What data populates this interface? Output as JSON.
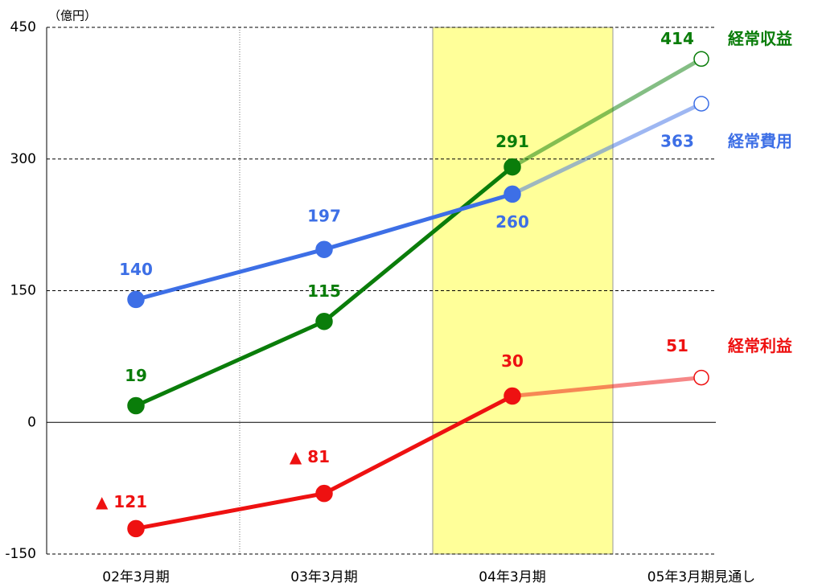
{
  "chart_data": {
    "type": "line",
    "y_axis_label": "（億円）",
    "categories": [
      "02年3月期",
      "03年3月期",
      "04年3月期",
      "05年3月期見通し"
    ],
    "series": [
      {
        "name": "経常収益",
        "color": "#0a7d0a",
        "values": [
          19,
          115,
          291,
          414
        ]
      },
      {
        "name": "経常費用",
        "color": "#3d6fe6",
        "values": [
          140,
          197,
          260,
          363
        ]
      },
      {
        "name": "経常利益",
        "color": "#ee1111",
        "values": [
          -121,
          -81,
          30,
          51
        ],
        "value_labels": [
          "▲ 121",
          "▲ 81",
          "30",
          "51"
        ]
      }
    ],
    "ylim": [
      -150,
      450
    ],
    "yticks": [
      -150,
      0,
      150,
      300,
      450
    ],
    "grid": true
  }
}
